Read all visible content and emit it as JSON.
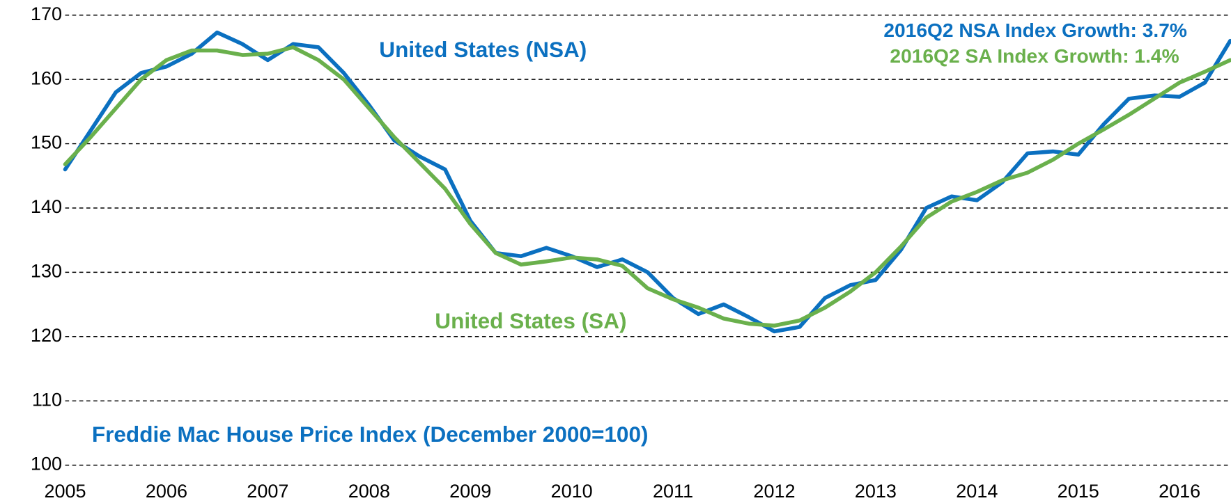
{
  "chart_data": {
    "type": "line",
    "title": "Freddie Mac House Price Index (December 2000=100)",
    "annotations": [
      "United States (NSA)",
      "United States (SA)",
      "2016Q2 NSA Index Growth: 3.7%",
      "2016Q2 SA Index Growth: 1.4%"
    ],
    "x": [
      2005,
      2005.25,
      2005.5,
      2005.75,
      2006,
      2006.25,
      2006.5,
      2006.75,
      2007,
      2007.25,
      2007.5,
      2007.75,
      2008,
      2008.25,
      2008.5,
      2008.75,
      2009,
      2009.25,
      2009.5,
      2009.75,
      2010,
      2010.25,
      2010.5,
      2010.75,
      2011,
      2011.25,
      2011.5,
      2011.75,
      2012,
      2012.25,
      2012.5,
      2012.75,
      2013,
      2013.25,
      2013.5,
      2013.75,
      2014,
      2014.25,
      2014.5,
      2014.75,
      2015,
      2015.25,
      2015.5,
      2015.75,
      2016,
      2016.25,
      2016.5
    ],
    "series": [
      {
        "name": "United States (NSA)",
        "color": "#0b70c0",
        "values": [
          146,
          152,
          158,
          161,
          162,
          164,
          167.3,
          165.5,
          163,
          165.5,
          165,
          161,
          156,
          150.5,
          148,
          146,
          138,
          133,
          132.5,
          133.8,
          132.5,
          130.8,
          132,
          130,
          126,
          123.5,
          125,
          123,
          120.8,
          121.5,
          126,
          128,
          128.8,
          133.5,
          140,
          141.8,
          141.2,
          144,
          148.5,
          148.8,
          148.3,
          153,
          157,
          157.5,
          157.3,
          159.5,
          166
        ]
      },
      {
        "name": "United States (SA)",
        "color": "#6ab04c",
        "values": [
          146.8,
          151,
          155.5,
          160,
          163,
          164.5,
          164.5,
          163.8,
          164,
          165,
          163,
          160,
          155.5,
          151,
          147,
          143,
          137.5,
          133,
          131.2,
          131.7,
          132.3,
          132,
          131,
          127.5,
          125.8,
          124.5,
          122.8,
          122,
          121.7,
          122.5,
          124.5,
          127,
          130,
          134,
          138.5,
          141,
          142.5,
          144.3,
          145.5,
          147.5,
          150,
          152.2,
          154.5,
          157,
          159.5,
          161.2,
          163
        ]
      }
    ],
    "xlim": [
      2005,
      2016.5
    ],
    "xticks": [
      2005,
      2006,
      2007,
      2008,
      2009,
      2010,
      2011,
      2012,
      2013,
      2014,
      2015,
      2016
    ],
    "ylim": [
      100,
      170
    ],
    "yticks": [
      100,
      110,
      120,
      130,
      140,
      150,
      160,
      170
    ],
    "grid": true
  }
}
